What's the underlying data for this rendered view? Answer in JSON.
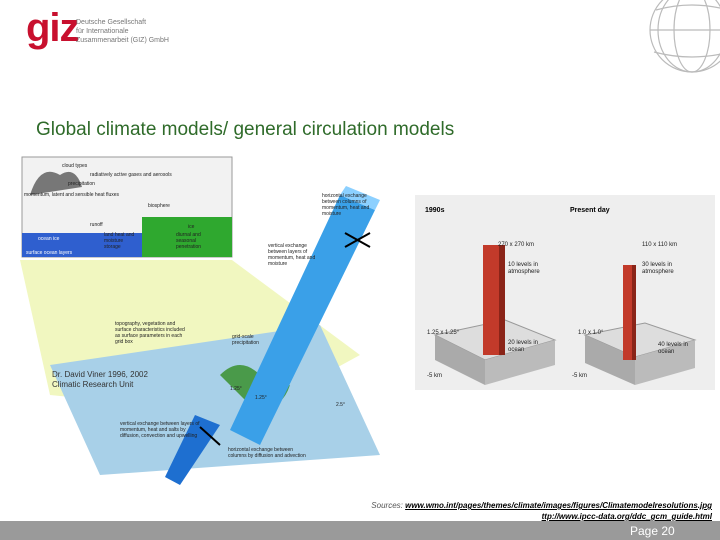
{
  "header": {
    "logo": "giz",
    "org_lines": [
      "Deutsche Gesellschaft",
      "für Internationale",
      "Zusammenarbeit (GIZ) GmbH"
    ]
  },
  "title": "Global climate models/  general circulation models",
  "figure_left": {
    "labels": [
      "cloud types",
      "precipitation",
      "radiatively active gases and aerosols",
      "momentum, latent and sensible heat fluxes",
      "biosphere",
      "runoff",
      "ocean ice",
      "land heat and moisture storage",
      "ice",
      "diurnal and seasonal penetration",
      "surface ocean layers",
      "horizontal exchange between columns of momentum, heat and moisture",
      "vertical exchange between layers of momentum, heat and moisture",
      "topography, vegetation and surface characteristics included as surface parameters in each grid box",
      "grid-scale precipitation",
      "vertical exchange between layers of momentum, heat and salts by diffusion, convection and upwelling",
      "horizontal exchange between columns by diffusion and advection",
      "1.25°",
      "1.25°",
      "2.5°"
    ],
    "credit": [
      "Dr. David Viner 1996, 2002",
      "Climatic Research Unit"
    ]
  },
  "figure_right": {
    "periods": [
      "1990s",
      "Present day"
    ],
    "grid": [
      "270 x 270 km",
      "110 x 110 km"
    ],
    "atmosphere": [
      "10 levels in atmosphere",
      "30 levels in atmosphere"
    ],
    "resolution": [
      "1.25 x 1.25°",
      "1.0 x 1.0°"
    ],
    "ocean": [
      "20 levels in ocean",
      "40 levels in ocean"
    ],
    "depth": [
      "-5 km",
      "-5 km"
    ]
  },
  "sources": {
    "label": "Sources:",
    "links": [
      "www.wmo.int/pages/themes/climate/images/figures/Climatemodelresolutions.jpg",
      "ttp://www.ipcc-data.org/ddc_gcm_guide.html"
    ]
  },
  "footer": {
    "page": "Page 20"
  }
}
